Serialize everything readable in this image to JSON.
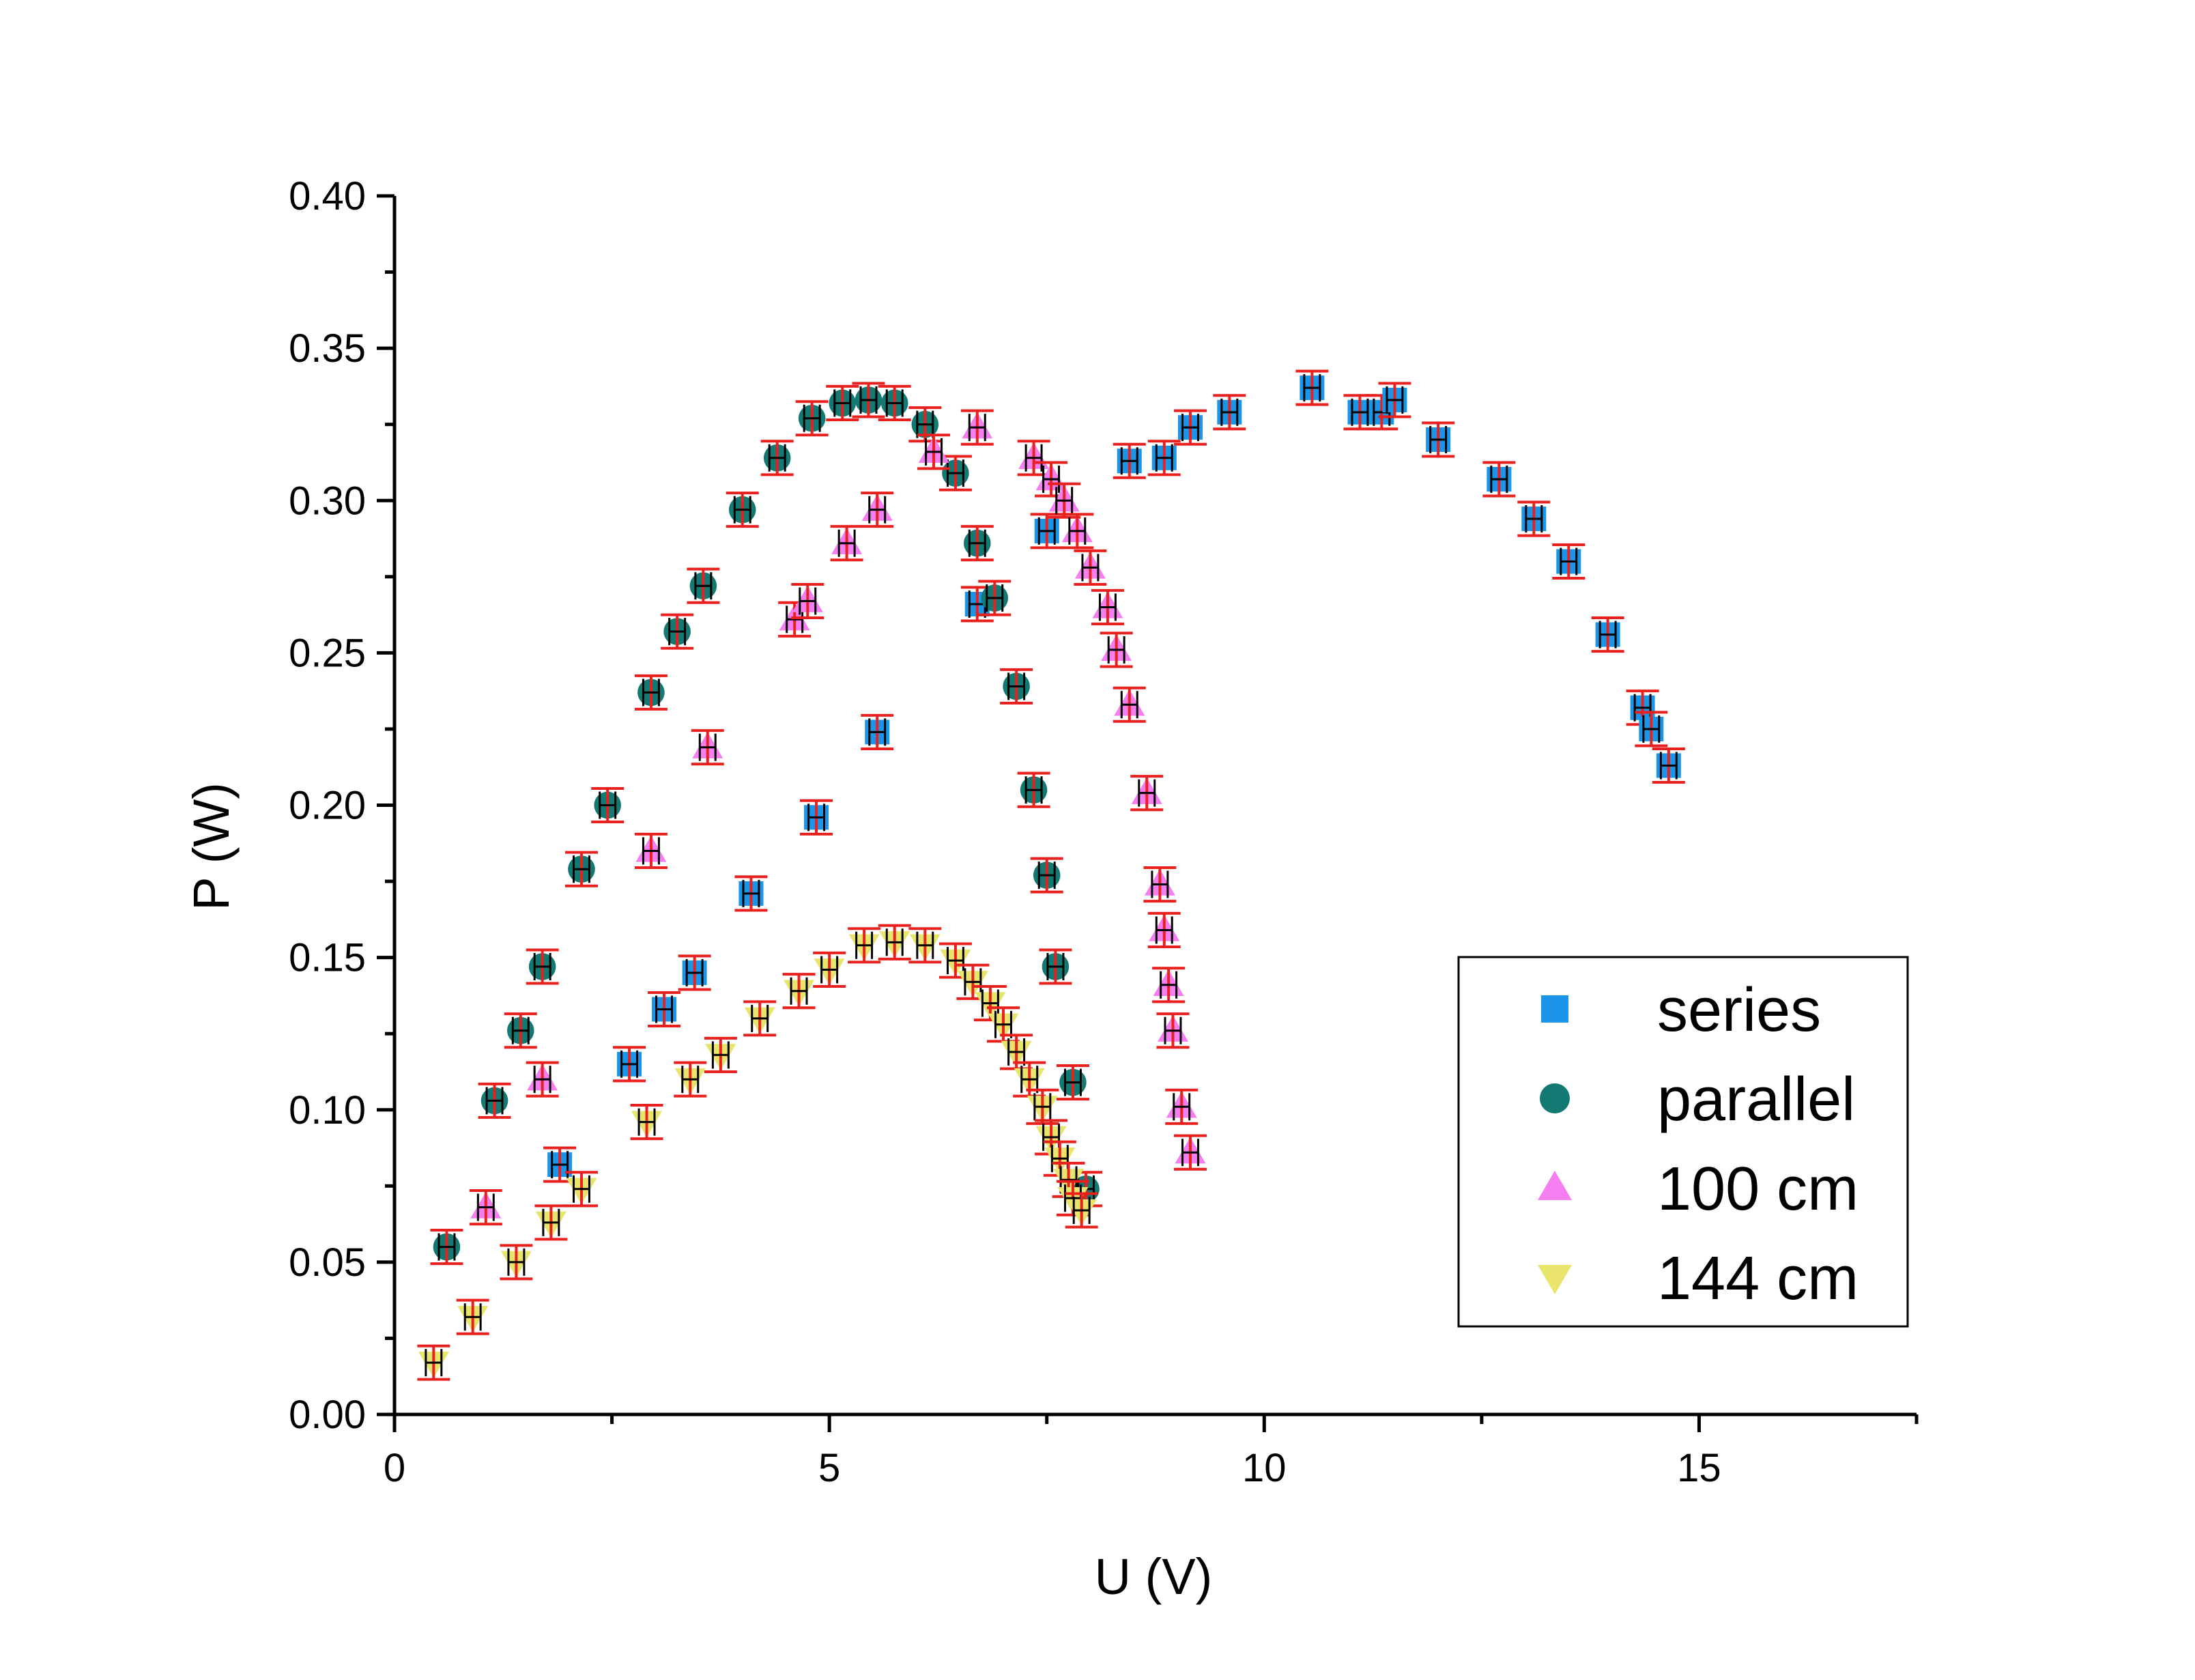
{
  "chart_data": {
    "type": "scatter",
    "title": "",
    "xlabel": "U (V)",
    "ylabel": "P (W)",
    "xlim": [
      0,
      17.5
    ],
    "ylim": [
      0,
      0.4
    ],
    "xticks": [
      {
        "value": 0,
        "label": "0"
      },
      {
        "value": 5,
        "label": "5"
      },
      {
        "value": 10,
        "label": "10"
      },
      {
        "value": 15,
        "label": "15"
      }
    ],
    "yticks": [
      {
        "value": 0.0,
        "label": "0.00"
      },
      {
        "value": 0.05,
        "label": "0.05"
      },
      {
        "value": 0.1,
        "label": "0.10"
      },
      {
        "value": 0.15,
        "label": "0.15"
      },
      {
        "value": 0.2,
        "label": "0.20"
      },
      {
        "value": 0.25,
        "label": "0.25"
      },
      {
        "value": 0.3,
        "label": "0.30"
      },
      {
        "value": 0.35,
        "label": "0.35"
      },
      {
        "value": 0.4,
        "label": "0.40"
      }
    ],
    "grid": false,
    "legend_position": "bottom-right",
    "error_bars": true,
    "series": [
      {
        "name": "series",
        "marker": "square",
        "color": "#1a95e8",
        "x": [
          1.9,
          2.7,
          3.1,
          3.45,
          4.1,
          4.85,
          5.55,
          6.7,
          7.5,
          8.45,
          8.85,
          9.15,
          9.6,
          10.55,
          11.1,
          11.35,
          11.5,
          12.0,
          12.7,
          13.1,
          13.5,
          13.95,
          14.35,
          14.45,
          14.65
        ],
        "y": [
          0.082,
          0.115,
          0.133,
          0.145,
          0.171,
          0.196,
          0.224,
          0.266,
          0.29,
          0.313,
          0.314,
          0.324,
          0.329,
          0.337,
          0.329,
          0.329,
          0.333,
          0.32,
          0.307,
          0.294,
          0.28,
          0.256,
          0.232,
          0.225,
          0.213
        ]
      },
      {
        "name": "parallel",
        "marker": "circle",
        "color": "#137a73",
        "x": [
          0.6,
          1.15,
          1.45,
          1.7,
          2.15,
          2.45,
          2.95,
          3.25,
          3.55,
          4.0,
          4.4,
          4.8,
          5.15,
          5.45,
          5.75,
          6.1,
          6.45,
          6.7,
          6.9,
          7.15,
          7.35,
          7.5,
          7.6,
          7.8,
          7.95
        ],
        "y": [
          0.055,
          0.103,
          0.126,
          0.147,
          0.179,
          0.2,
          0.237,
          0.257,
          0.272,
          0.297,
          0.314,
          0.327,
          0.332,
          0.333,
          0.332,
          0.325,
          0.309,
          0.286,
          0.268,
          0.239,
          0.205,
          0.177,
          0.147,
          0.109,
          0.074
        ]
      },
      {
        "name": "100 cm",
        "marker": "triangle-up",
        "color": "#f57ef0",
        "x": [
          1.05,
          1.7,
          2.95,
          3.6,
          4.6,
          4.75,
          5.2,
          5.55,
          6.2,
          6.7,
          7.35,
          7.55,
          7.7,
          7.85,
          8.0,
          8.2,
          8.3,
          8.45,
          8.65,
          8.8,
          8.85,
          8.9,
          8.95,
          9.05,
          9.15
        ],
        "y": [
          0.068,
          0.11,
          0.185,
          0.219,
          0.261,
          0.267,
          0.286,
          0.297,
          0.316,
          0.324,
          0.314,
          0.307,
          0.3,
          0.29,
          0.278,
          0.265,
          0.251,
          0.233,
          0.204,
          0.174,
          0.159,
          0.141,
          0.126,
          0.101,
          0.086
        ]
      },
      {
        "name": "144 cm",
        "marker": "triangle-down",
        "color": "#e9e46c",
        "x": [
          0.45,
          0.9,
          1.4,
          1.8,
          2.15,
          2.9,
          3.4,
          3.75,
          4.2,
          4.65,
          5.0,
          5.4,
          5.75,
          6.1,
          6.45,
          6.65,
          6.85,
          7.0,
          7.15,
          7.3,
          7.45,
          7.55,
          7.65,
          7.75,
          7.8,
          7.9
        ],
        "y": [
          0.017,
          0.032,
          0.05,
          0.063,
          0.074,
          0.096,
          0.11,
          0.118,
          0.13,
          0.139,
          0.146,
          0.154,
          0.155,
          0.154,
          0.149,
          0.142,
          0.135,
          0.128,
          0.119,
          0.11,
          0.101,
          0.091,
          0.084,
          0.077,
          0.071,
          0.067
        ]
      }
    ]
  }
}
